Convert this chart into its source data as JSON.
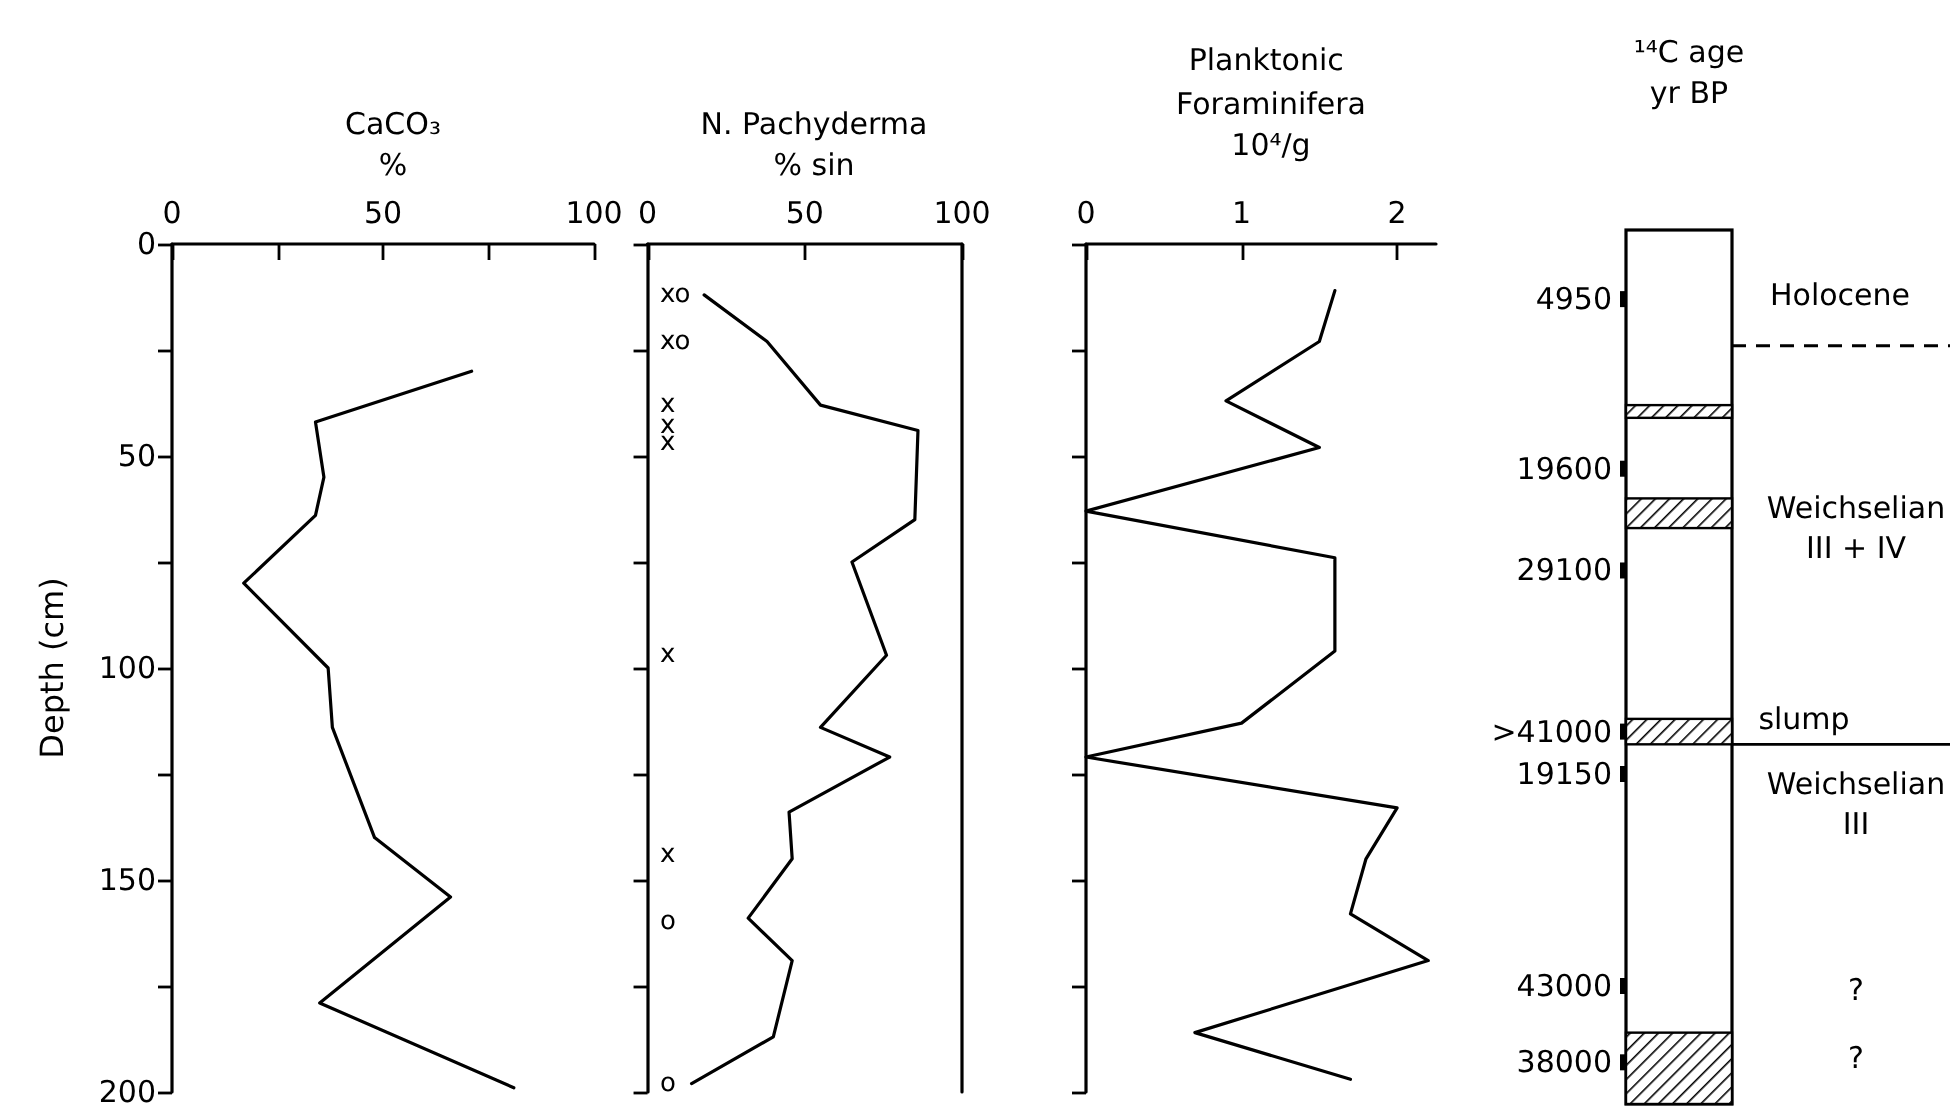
{
  "chart_data": [
    {
      "type": "line",
      "title": "CaCO₃",
      "subtitle": "%",
      "ylabel": "Depth (cm)",
      "xlim": [
        0,
        100
      ],
      "xticks": [
        0,
        {
          "value": 25,
          "label": null
        },
        50,
        {
          "value": 75,
          "label": null
        },
        100
      ],
      "ylim": [
        200,
        0
      ],
      "yticks": [
        0,
        {
          "value": 25,
          "label": null
        },
        50,
        {
          "value": 75,
          "label": null
        },
        100,
        {
          "value": 125,
          "label": null
        },
        150,
        {
          "value": 175,
          "label": null
        },
        200
      ],
      "marker": "none",
      "line_style": "solid",
      "grid": false,
      "series": [
        {
          "color": "#000000",
          "x": [
            71,
            34,
            36,
            34,
            17,
            37,
            38,
            48,
            66,
            35,
            81
          ],
          "values": [
            30,
            42,
            55,
            64,
            80,
            100,
            114,
            140,
            154,
            179,
            199
          ]
        }
      ]
    },
    {
      "type": "line",
      "title": "N. Pachyderma",
      "subtitle": "% sin",
      "xlim": [
        0,
        100
      ],
      "xticks": [
        0,
        50,
        100
      ],
      "ylim": [
        200,
        0
      ],
      "yticks": [
        {
          "value": 0,
          "label": null
        },
        {
          "value": 25,
          "label": null
        },
        {
          "value": 50,
          "label": null
        },
        {
          "value": 75,
          "label": null
        },
        {
          "value": 100,
          "label": null
        },
        {
          "value": 125,
          "label": null
        },
        {
          "value": 150,
          "label": null
        },
        {
          "value": 175,
          "label": null
        },
        {
          "value": 200,
          "label": null
        }
      ],
      "tick_labels": "x",
      "marker": "none",
      "line_style": "solid",
      "grid": false,
      "series": [
        {
          "color": "#000000",
          "x": [
            18,
            38,
            55,
            86,
            85,
            65,
            76,
            55,
            77,
            45,
            46,
            32,
            46,
            40,
            14
          ],
          "values": [
            12,
            23,
            38,
            44,
            65,
            75,
            97,
            114,
            121,
            134,
            145,
            159,
            169,
            187,
            198
          ]
        }
      ],
      "annotations": [
        "xo",
        "xo",
        "x",
        "x",
        "x",
        "x",
        "x",
        "o",
        "o"
      ]
    },
    {
      "type": "line",
      "title": "Planktonic Foraminifera",
      "subtitle": "10⁴/g",
      "xlim": [
        0,
        2.25
      ],
      "xticks": [
        0,
        1,
        2
      ],
      "ylim": [
        200,
        0
      ],
      "yticks": [
        {
          "value": 0,
          "label": null
        },
        {
          "value": 25,
          "label": null
        },
        {
          "value": 50,
          "label": null
        },
        {
          "value": 75,
          "label": null
        },
        {
          "value": 100,
          "label": null
        },
        {
          "value": 125,
          "label": null
        },
        {
          "value": 150,
          "label": null
        },
        {
          "value": 175,
          "label": null
        },
        {
          "value": 200,
          "label": null
        }
      ],
      "tick_labels": "x",
      "marker": "none",
      "line_style": "solid",
      "grid": false,
      "series": [
        {
          "color": "#000000",
          "x": [
            1.6,
            1.5,
            0.9,
            1.5,
            0,
            1.6,
            1.6,
            1.0,
            0,
            2.0,
            1.8,
            1.7,
            2.2,
            0.7,
            1.7
          ],
          "values": [
            11,
            23,
            37,
            48,
            63,
            74,
            96,
            113,
            121,
            133,
            145,
            158,
            169,
            186,
            197
          ]
        }
      ]
    },
    {
      "type": "other",
      "title": "¹⁴C age",
      "subtitle": "yr BP",
      "annotations": [
        "4950",
        "19600",
        "29100",
        ">41000",
        "19150",
        "43000",
        "38000",
        "Holocene",
        "Weichselian\nIII + IV",
        "slump",
        "Weichselian\nIII",
        "?",
        "?"
      ]
    }
  ]
}
